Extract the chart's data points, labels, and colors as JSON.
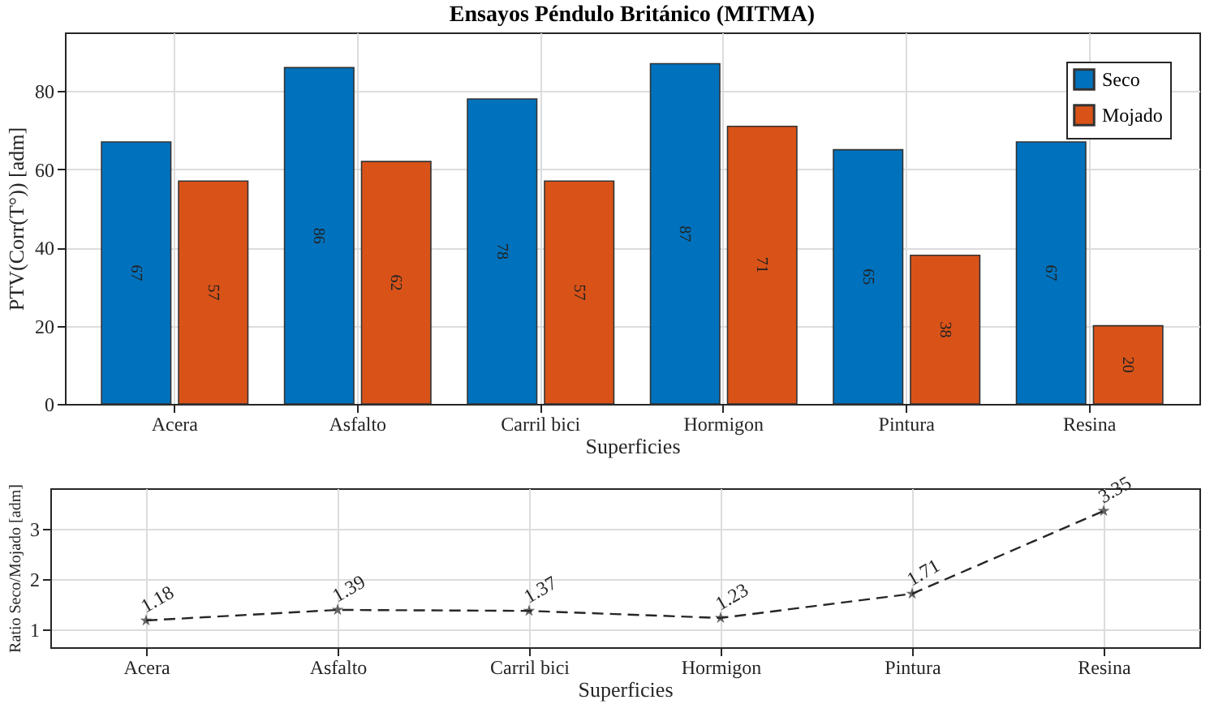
{
  "chart_data": [
    {
      "type": "bar",
      "title": "Ensayos Péndulo Británico (MITMA)",
      "xlabel": "Superficies",
      "ylabel": "PTV(Corr(T°)) [adm]",
      "categories": [
        "Acera",
        "Asfalto",
        "Carril bici",
        "Hormigon",
        "Pintura",
        "Resina"
      ],
      "series": [
        {
          "name": "Seco",
          "color": "#0072bd",
          "values": [
            67,
            86,
            78,
            87,
            65,
            67
          ]
        },
        {
          "name": "Mojado",
          "color": "#d95319",
          "values": [
            57,
            62,
            57,
            71,
            38,
            20
          ]
        }
      ],
      "ylim": [
        0,
        95
      ],
      "yticks": [
        0,
        20,
        40,
        60,
        80
      ],
      "grid": true,
      "legend": "top right",
      "data_labels": true
    },
    {
      "type": "line",
      "xlabel": "Superficies",
      "ylabel": "Ratio Seco/Mojado [adm]",
      "categories": [
        "Acera",
        "Asfalto",
        "Carril bici",
        "Hormigon",
        "Pintura",
        "Resina"
      ],
      "series": [
        {
          "color": "#262626",
          "values": [
            1.18,
            1.39,
            1.37,
            1.23,
            1.71,
            3.35
          ]
        }
      ],
      "ylim": [
        0.65,
        3.8
      ],
      "yticks": [
        1,
        2,
        3
      ],
      "grid": true,
      "marker": "star",
      "line_style": "dashed",
      "data_labels": true
    }
  ]
}
